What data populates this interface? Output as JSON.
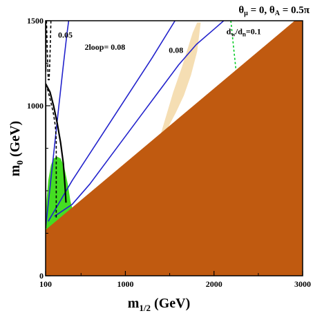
{
  "chart_data": {
    "type": "area",
    "title_parts": {
      "theta_sym": "θ",
      "mu_sub": "μ",
      "eq1": " = 0, ",
      "A_sub": "A",
      "eq2": " = 0.5π"
    },
    "xlabel_main": "m",
    "xlabel_sub": "1/2",
    "xlabel_unit": " (GeV)",
    "ylabel_main": "m",
    "ylabel_sub": "0",
    "ylabel_unit": " (GeV)",
    "xlim": [
      100,
      3000
    ],
    "ylim": [
      0,
      1500
    ],
    "x_ticks": [
      {
        "value": 100,
        "label": "100"
      },
      {
        "value": 1000,
        "label": "1000"
      },
      {
        "value": 2000,
        "label": "2000"
      },
      {
        "value": 3000,
        "label": "3000"
      }
    ],
    "y_ticks": [
      {
        "value": 0,
        "label": "0"
      },
      {
        "value": 1000,
        "label": "1000"
      },
      {
        "value": 1500,
        "label": "1500"
      }
    ],
    "annotations": [
      {
        "text": "0.05",
        "x": 240,
        "y": 1400
      },
      {
        "text": "2loop= 0.08",
        "x": 540,
        "y": 1330
      },
      {
        "text": "0.08",
        "x": 1490,
        "y": 1310
      },
      {
        "text_main": "d",
        "sub1": "w",
        "mid": "/d",
        "sub2": "n",
        "tail": "=0.1",
        "x": 2140,
        "y": 1420
      }
    ],
    "regions": {
      "excluded_fill": "#c05a10",
      "excluded_polygon": [
        [
          100,
          270
        ],
        [
          2910,
          1500
        ],
        [
          3000,
          1500
        ],
        [
          3000,
          0
        ],
        [
          100,
          0
        ]
      ],
      "green_fill": "#44dd22",
      "green_polygon": [
        [
          100,
          300
        ],
        [
          110,
          440
        ],
        [
          130,
          560
        ],
        [
          160,
          650
        ],
        [
          190,
          690
        ],
        [
          230,
          700
        ],
        [
          270,
          690
        ],
        [
          310,
          640
        ],
        [
          350,
          540
        ],
        [
          380,
          440
        ],
        [
          400,
          400
        ],
        [
          100,
          260
        ]
      ],
      "cream_fill": "#f5deb3",
      "cream_polygon": [
        [
          1300,
          650
        ],
        [
          1420,
          870
        ],
        [
          1540,
          1080
        ],
        [
          1640,
          1230
        ],
        [
          1700,
          1330
        ],
        [
          1760,
          1430
        ],
        [
          1810,
          1490
        ],
        [
          1850,
          1490
        ],
        [
          1810,
          1320
        ],
        [
          1740,
          1180
        ],
        [
          1660,
          1060
        ],
        [
          1570,
          960
        ],
        [
          1490,
          880
        ],
        [
          1400,
          800
        ]
      ],
      "cyan_fill": "#aaffdd",
      "cyan_polygon": [
        [
          1820,
          880
        ],
        [
          1870,
          930
        ],
        [
          1900,
          960
        ],
        [
          1880,
          920
        ],
        [
          1840,
          890
        ]
      ]
    },
    "lines": [
      {
        "name": "",
        "color": "#2222cc",
        "dash": "",
        "width": 1.6,
        "points": [
          [
            100,
            280
          ],
          [
            150,
            520
          ],
          [
            200,
            760
          ],
          [
            250,
            1000
          ],
          [
            300,
            1240
          ],
          [
            340,
            1420
          ],
          [
            360,
            1500
          ]
        ]
      },
      {
        "name": "",
        "color": "#2222cc",
        "dash": "",
        "width": 1.6,
        "points": [
          [
            130,
            320
          ],
          [
            400,
            560
          ],
          [
            700,
            800
          ],
          [
            1000,
            1040
          ],
          [
            1300,
            1280
          ],
          [
            1560,
            1500
          ]
        ]
      },
      {
        "name": "",
        "color": "#2222cc",
        "dash": "",
        "width": 1.6,
        "points": [
          [
            200,
            350
          ],
          [
            400,
            420
          ],
          [
            600,
            540
          ],
          [
            800,
            680
          ],
          [
            1000,
            820
          ],
          [
            1200,
            960
          ],
          [
            1400,
            1100
          ],
          [
            1600,
            1240
          ],
          [
            1800,
            1360
          ],
          [
            2000,
            1450
          ],
          [
            2110,
            1500
          ]
        ]
      },
      {
        "name": "",
        "color": "#000000",
        "dash": "",
        "width": 2.4,
        "points": [
          [
            100,
            1500
          ],
          [
            100,
            1200
          ]
        ]
      },
      {
        "name": "",
        "color": "#000000",
        "dash": "",
        "width": 2.2,
        "points": [
          [
            100,
            1130
          ],
          [
            150,
            1080
          ],
          [
            190,
            1000
          ],
          [
            230,
            900
          ],
          [
            270,
            780
          ],
          [
            300,
            660
          ],
          [
            320,
            520
          ],
          [
            330,
            430
          ]
        ]
      },
      {
        "name": "",
        "color": "#000000",
        "dash": "",
        "width": 2.2,
        "points": [
          [
            100,
            1130
          ],
          [
            100,
            280
          ]
        ]
      },
      {
        "name": "",
        "color": "#000000",
        "dash": "4,3",
        "width": 1.6,
        "points": [
          [
            110,
            1500
          ],
          [
            120,
            1300
          ],
          [
            130,
            1150
          ]
        ]
      },
      {
        "name": "",
        "color": "#000000",
        "dash": "4,3",
        "width": 1.6,
        "points": [
          [
            120,
            1100
          ],
          [
            160,
            1020
          ],
          [
            190,
            950
          ],
          [
            210,
            880
          ],
          [
            220,
            800
          ],
          [
            220,
            700
          ]
        ]
      },
      {
        "name": "",
        "color": "#000000",
        "dash": "4,3",
        "width": 1.6,
        "points": [
          [
            160,
            1500
          ],
          [
            150,
            1300
          ],
          [
            140,
            1150
          ]
        ]
      },
      {
        "name": "",
        "color": "#000000",
        "dash": "4,3",
        "width": 1.6,
        "points": [
          [
            220,
            700
          ],
          [
            220,
            330
          ]
        ]
      },
      {
        "name": "",
        "color": "#000000",
        "dash": "4,3",
        "width": 1.6,
        "points": [
          [
            100,
            1100
          ],
          [
            100,
            300
          ]
        ]
      },
      {
        "name": "",
        "color": "#00cc22",
        "dash": "3,3",
        "width": 1.6,
        "points": [
          [
            2190,
            1500
          ],
          [
            2220,
            1350
          ],
          [
            2250,
            1200
          ],
          [
            2270,
            1050
          ],
          [
            2280,
            950
          ]
        ]
      }
    ],
    "grid": false
  }
}
